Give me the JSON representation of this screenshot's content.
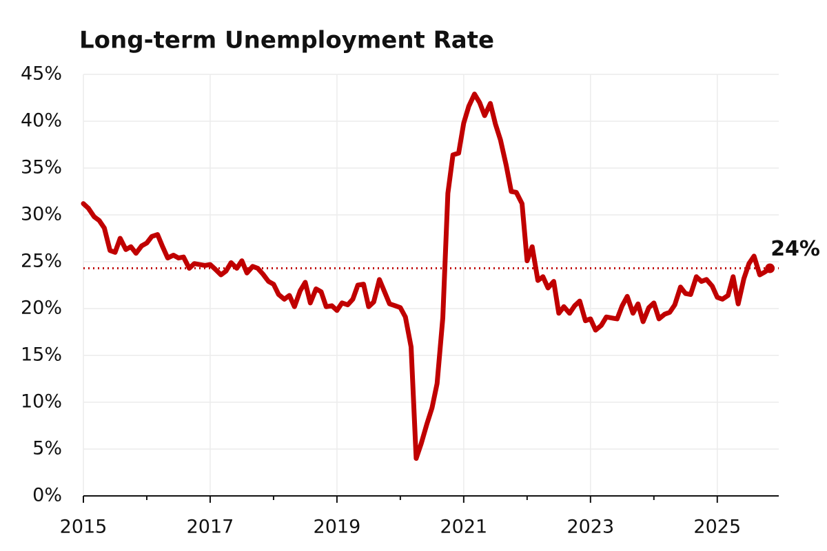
{
  "chart_data": {
    "type": "line",
    "title": "Long-term Unemployment Rate",
    "x": [
      2015,
      2015.08,
      2015.17,
      2015.25,
      2015.33,
      2015.42,
      2015.5,
      2015.58,
      2015.67,
      2015.75,
      2015.83,
      2015.92,
      2016,
      2016.08,
      2016.17,
      2016.25,
      2016.33,
      2016.42,
      2016.5,
      2016.58,
      2016.67,
      2016.75,
      2016.83,
      2016.92,
      2017,
      2017.08,
      2017.17,
      2017.25,
      2017.33,
      2017.42,
      2017.5,
      2017.58,
      2017.67,
      2017.75,
      2017.83,
      2017.92,
      2018,
      2018.08,
      2018.17,
      2018.25,
      2018.33,
      2018.42,
      2018.5,
      2018.58,
      2018.67,
      2018.75,
      2018.83,
      2018.92,
      2019,
      2019.08,
      2019.17,
      2019.25,
      2019.33,
      2019.42,
      2019.5,
      2019.58,
      2019.67,
      2019.75,
      2019.83,
      2019.92,
      2020,
      2020.08,
      2020.17,
      2020.25,
      2020.33,
      2020.42,
      2020.5,
      2020.58,
      2020.67,
      2020.75,
      2020.83,
      2020.92,
      2021,
      2021.08,
      2021.17,
      2021.25,
      2021.33,
      2021.42,
      2021.5,
      2021.58,
      2021.67,
      2021.75,
      2021.83,
      2021.92,
      2022,
      2022.08,
      2022.17,
      2022.25,
      2022.33,
      2022.42,
      2022.5,
      2022.58,
      2022.67,
      2022.75,
      2022.83,
      2022.92,
      2023,
      2023.08,
      2023.17,
      2023.25,
      2023.33,
      2023.42,
      2023.5,
      2023.58,
      2023.67,
      2023.75,
      2023.83,
      2023.92,
      2024,
      2024.08,
      2024.17,
      2024.25,
      2024.33,
      2024.42,
      2024.5,
      2024.58,
      2024.67,
      2024.75,
      2024.83,
      2024.92,
      2025,
      2025.08,
      2025.17,
      2025.25,
      2025.33,
      2025.42,
      2025.5,
      2025.58,
      2025.67,
      2025.75,
      2025.83
    ],
    "series": [
      {
        "color": "#c00000",
        "values": [
          31.2,
          30.7,
          29.8,
          29.4,
          28.6,
          26.2,
          26.0,
          27.5,
          26.3,
          26.6,
          25.9,
          26.7,
          27.0,
          27.7,
          27.9,
          26.6,
          25.4,
          25.7,
          25.4,
          25.5,
          24.3,
          24.8,
          24.7,
          24.6,
          24.7,
          24.2,
          23.6,
          24.0,
          24.9,
          24.3,
          25.1,
          23.8,
          24.5,
          24.3,
          23.7,
          22.9,
          22.6,
          21.5,
          21.0,
          21.4,
          20.2,
          21.9,
          22.8,
          20.6,
          22.1,
          21.8,
          20.2,
          20.3,
          19.8,
          20.6,
          20.4,
          21.0,
          22.5,
          22.6,
          20.2,
          20.7,
          23.1,
          21.8,
          20.5,
          20.3,
          20.1,
          19.1,
          15.9,
          4.0,
          5.6,
          7.7,
          9.4,
          12.0,
          19.0,
          32.3,
          36.4,
          36.6,
          39.8,
          41.6,
          42.9,
          42.0,
          40.6,
          41.9,
          39.7,
          38.0,
          35.3,
          32.5,
          32.4,
          31.2,
          25.1,
          26.6,
          23.0,
          23.4,
          22.2,
          22.9,
          19.5,
          20.2,
          19.5,
          20.3,
          20.8,
          18.7,
          18.9,
          17.7,
          18.2,
          19.1,
          19.0,
          18.9,
          20.3,
          21.3,
          19.5,
          20.5,
          18.6,
          20.1,
          20.6,
          18.9,
          19.4,
          19.6,
          20.4,
          22.3,
          21.6,
          21.5,
          23.4,
          22.9,
          23.1,
          22.4,
          21.2,
          21.0,
          21.4,
          23.4,
          20.5,
          23.2,
          24.8,
          25.6,
          23.6,
          23.9,
          24.3
        ]
      }
    ],
    "annotation": {
      "label": "24%",
      "value": 24.3
    },
    "xlim": [
      2015,
      2025.97
    ],
    "xticks": [
      2015,
      2017,
      2019,
      2021,
      2023,
      2025
    ],
    "xticks_minor": [
      2016,
      2018,
      2020,
      2022,
      2024
    ],
    "ylim": [
      0,
      45
    ],
    "yticks": [
      {
        "value": 0,
        "label": "0%"
      },
      {
        "value": 5,
        "label": "5%"
      },
      {
        "value": 10,
        "label": "10%"
      },
      {
        "value": 15,
        "label": "15%"
      },
      {
        "value": 20,
        "label": "20%"
      },
      {
        "value": 25,
        "label": "25%"
      },
      {
        "value": 30,
        "label": "30%"
      },
      {
        "value": 35,
        "label": "35%"
      },
      {
        "value": 40,
        "label": "40%"
      },
      {
        "value": 45,
        "label": "45%"
      }
    ],
    "grid": true
  }
}
